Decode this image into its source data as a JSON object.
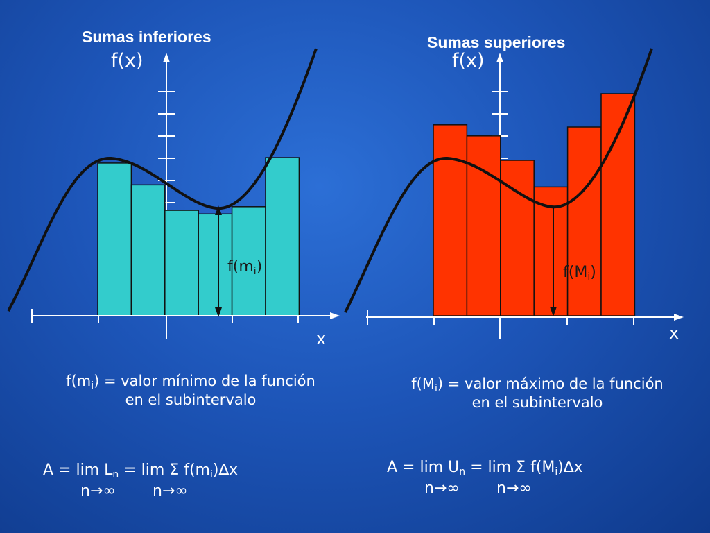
{
  "left_panel": {
    "title": "Sumas inferiores",
    "y_axis_label": "f(x)",
    "x_axis_label": "x",
    "marker_base": "f(m",
    "marker_sub": "i",
    "marker_close": ")",
    "rect_color": "#33cccc",
    "rect_heights_fraction": [
      0.84,
      0.72,
      0.58,
      0.56,
      0.6,
      0.87
    ]
  },
  "right_panel": {
    "title": "Sumas superiores",
    "y_axis_label": "f(x)",
    "x_axis_label": "x",
    "marker_base": "f(M",
    "marker_sub": "i",
    "marker_close": ")",
    "rect_color": "#ff3300",
    "rect_heights_fraction": [
      0.86,
      0.81,
      0.7,
      0.58,
      0.85,
      1.0
    ]
  },
  "left_desc": {
    "line1_a": "f(m",
    "line1_sub": "i",
    "line1_b": ") = valor mínimo de la función",
    "line2": "en el subintervalo"
  },
  "right_desc": {
    "line1_a": "f(M",
    "line1_sub": "i",
    "line1_b": ") = valor máximo de la función",
    "line2": "en el subintervalo"
  },
  "left_formula": {
    "a": "A = lim L",
    "sub1": "n",
    "b": " = lim Σ f(m",
    "sub2": "i",
    "c": ")∆x",
    "limit1": "n→∞",
    "limit2": "n→∞"
  },
  "right_formula": {
    "a": "A = lim U",
    "sub1": "n",
    "b": " = lim Σ f(M",
    "sub2": "i",
    "c": ")∆x",
    "limit1": "n→∞",
    "limit2": "n→∞"
  },
  "colors": {
    "curve": "#111111",
    "axis": "#ffffff",
    "rect_stroke": "#111111"
  }
}
